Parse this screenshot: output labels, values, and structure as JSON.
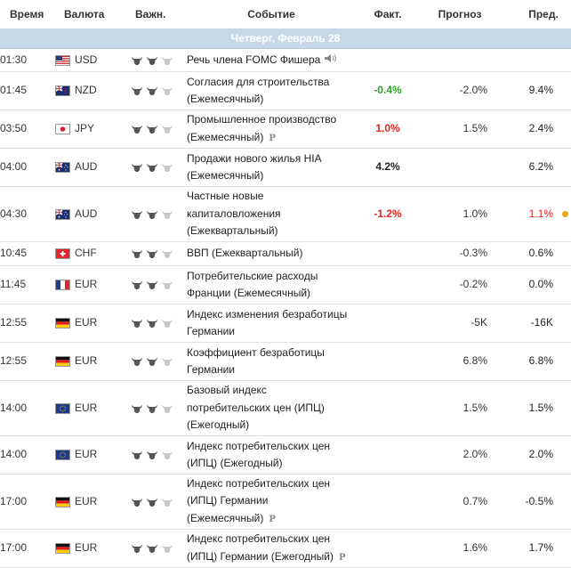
{
  "headers": {
    "time": "Время",
    "currency": "Валюта",
    "importance": "Важн.",
    "event": "Событие",
    "actual": "Факт.",
    "forecast": "Прогноз",
    "previous": "Пред."
  },
  "day_label": "Четверг, Февраль 28",
  "colors": {
    "day_bar": "#c8d7e6",
    "positive": "#2ba12b",
    "negative": "#e8231b",
    "revision_dot": "#f2a31c"
  },
  "rows": [
    {
      "time": "01:30",
      "currency": "USD",
      "flag": "us",
      "bulls": 2,
      "event": [
        "Речь члена FOMC Фишера"
      ],
      "actual": "",
      "actual_color": "black",
      "forecast": "",
      "previous": "",
      "previous_color": "black",
      "prelim": false,
      "speech": true,
      "revised": false
    },
    {
      "time": "01:45",
      "currency": "NZD",
      "flag": "nz",
      "bulls": 2,
      "event": [
        "Согласия для строительства",
        "(Ежемесячный)"
      ],
      "actual": "-0.4%",
      "actual_color": "green",
      "forecast": "-2.0%",
      "previous": "9.4%",
      "previous_color": "black",
      "prelim": false,
      "speech": false,
      "revised": false
    },
    {
      "time": "03:50",
      "currency": "JPY",
      "flag": "jp",
      "bulls": 2,
      "event": [
        "Промышленное производство",
        "(Ежемесячный)"
      ],
      "actual": "1.0%",
      "actual_color": "red",
      "forecast": "1.5%",
      "previous": "2.4%",
      "previous_color": "black",
      "prelim": true,
      "speech": false,
      "revised": false
    },
    {
      "time": "04:00",
      "currency": "AUD",
      "flag": "au",
      "bulls": 2,
      "event": [
        "Продажи нового жилья HIA",
        "(Ежемесячный)"
      ],
      "actual": "4.2%",
      "actual_color": "black",
      "forecast": "",
      "previous": "6.2%",
      "previous_color": "black",
      "prelim": false,
      "speech": false,
      "revised": false
    },
    {
      "time": "04:30",
      "currency": "AUD",
      "flag": "au",
      "bulls": 2,
      "event": [
        "Частные новые",
        "капиталовложения",
        "(Ежеквартальный)"
      ],
      "actual": "-1.2%",
      "actual_color": "red",
      "forecast": "1.0%",
      "previous": "1.1%",
      "previous_color": "red",
      "prelim": false,
      "speech": false,
      "revised": true
    },
    {
      "time": "10:45",
      "currency": "CHF",
      "flag": "ch",
      "bulls": 2,
      "event": [
        "ВВП (Ежеквартальный)"
      ],
      "actual": "",
      "actual_color": "black",
      "forecast": "-0.3%",
      "previous": "0.6%",
      "previous_color": "black",
      "prelim": false,
      "speech": false,
      "revised": false
    },
    {
      "time": "11:45",
      "currency": "EUR",
      "flag": "fr",
      "bulls": 2,
      "event": [
        "Потребительские расходы",
        "Франции (Ежемесячный)"
      ],
      "actual": "",
      "actual_color": "black",
      "forecast": "-0.2%",
      "previous": "0.0%",
      "previous_color": "black",
      "prelim": false,
      "speech": false,
      "revised": false
    },
    {
      "time": "12:55",
      "currency": "EUR",
      "flag": "de",
      "bulls": 2,
      "event": [
        "Индекс изменения безработицы",
        "Германии"
      ],
      "actual": "",
      "actual_color": "black",
      "forecast": "-5K",
      "previous": "-16K",
      "previous_color": "black",
      "prelim": false,
      "speech": false,
      "revised": false
    },
    {
      "time": "12:55",
      "currency": "EUR",
      "flag": "de",
      "bulls": 2,
      "event": [
        "Коэффициент безработицы",
        "Германии"
      ],
      "actual": "",
      "actual_color": "black",
      "forecast": "6.8%",
      "previous": "6.8%",
      "previous_color": "black",
      "prelim": false,
      "speech": false,
      "revised": false
    },
    {
      "time": "14:00",
      "currency": "EUR",
      "flag": "eu",
      "bulls": 2,
      "event": [
        "Базовый индекс",
        "потребительских цен (ИПЦ)",
        "(Ежегодный)"
      ],
      "actual": "",
      "actual_color": "black",
      "forecast": "1.5%",
      "previous": "1.5%",
      "previous_color": "black",
      "prelim": false,
      "speech": false,
      "revised": false
    },
    {
      "time": "14:00",
      "currency": "EUR",
      "flag": "eu",
      "bulls": 2,
      "event": [
        "Индекс потребительских цен",
        "(ИПЦ) (Ежегодный)"
      ],
      "actual": "",
      "actual_color": "black",
      "forecast": "2.0%",
      "previous": "2.0%",
      "previous_color": "black",
      "prelim": false,
      "speech": false,
      "revised": false
    },
    {
      "time": "17:00",
      "currency": "EUR",
      "flag": "de",
      "bulls": 2,
      "event": [
        "Индекс потребительских цен",
        "(ИПЦ) Германии",
        "(Ежемесячный)"
      ],
      "actual": "",
      "actual_color": "black",
      "forecast": "0.7%",
      "previous": "-0.5%",
      "previous_color": "black",
      "prelim": true,
      "speech": false,
      "revised": false
    },
    {
      "time": "17:00",
      "currency": "EUR",
      "flag": "de",
      "bulls": 2,
      "event": [
        "Индекс потребительских цен",
        "(ИПЦ) Германии (Ежегодный)"
      ],
      "actual": "",
      "actual_color": "black",
      "forecast": "1.6%",
      "previous": "1.7%",
      "previous_color": "black",
      "prelim": true,
      "speech": false,
      "revised": false
    }
  ],
  "prelim_mark": "P"
}
